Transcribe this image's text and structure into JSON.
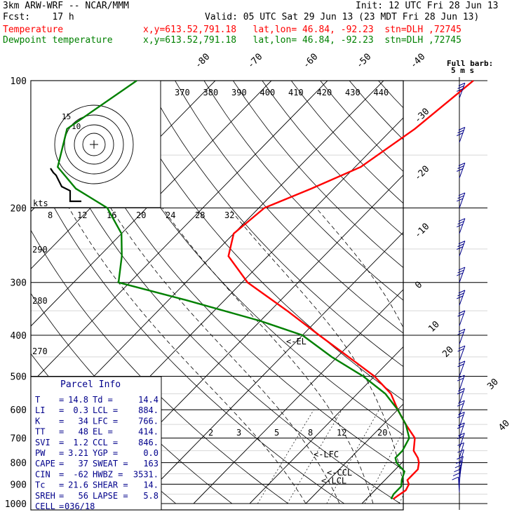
{
  "header": {
    "model": "3km ARW-WRF -- NCAR/MMM",
    "init": "Init: 12 UTC Fri 28 Jun 13",
    "fcst": "Fcst:    17 h",
    "valid": "Valid: 05 UTC Sat 29 Jun 13 (23 MDT Fri 28 Jun 13)",
    "legend": [
      {
        "label": "Temperature",
        "info": "x,y=613.52,791.18   lat,lon= 46.84, -92.23  stn=DLH ,72745",
        "color": "#ff0000"
      },
      {
        "label": "Dewpoint temperature",
        "info": "x,y=613.52,791.18   lat,lon= 46.84, -92.23  stn=DLH ,72745",
        "color": "#008000"
      }
    ]
  },
  "hodograph": {
    "units": "kts",
    "ring_labels": [
      "15",
      "10"
    ],
    "tick_labels": [
      "8",
      "12",
      "16",
      "20",
      "24",
      "28",
      "32"
    ]
  },
  "wind_key": {
    "title": "Full barb:",
    "value": "5 m s"
  },
  "parcel_info": {
    "title": "Parcel Info",
    "rows": [
      {
        "k1": "T",
        "v1": "14.8",
        "k2": "Td",
        "v2": "14.4"
      },
      {
        "k1": "LI",
        "v1": "0.3",
        "k2": "LCL",
        "v2": "884."
      },
      {
        "k1": "K",
        "v1": "34",
        "k2": "LFC",
        "v2": "766."
      },
      {
        "k1": "TT",
        "v1": "48",
        "k2": "EL",
        "v2": "414."
      },
      {
        "k1": "SVI",
        "v1": "1.2",
        "k2": "CCL",
        "v2": "846."
      },
      {
        "k1": "PW",
        "v1": "3.21",
        "k2": "YGP",
        "v2": "0.0"
      },
      {
        "k1": "CAPE",
        "v1": "37",
        "k2": "SWEAT",
        "v2": "163"
      },
      {
        "k1": "CIN",
        "v1": "-62",
        "k2": "HWBZ",
        "v2": "3531."
      },
      {
        "k1": "Tc",
        "v1": "21.6",
        "k2": "SHEAR",
        "v2": "14."
      },
      {
        "k1": "SREH",
        "v1": "56",
        "k2": "LAPSE",
        "v2": "5.8"
      },
      {
        "k1": "CELL",
        "v1": "036/18",
        "k2": "",
        "v2": ""
      }
    ]
  },
  "chart_data": {
    "type": "line",
    "title": "",
    "ylabel": "",
    "xlabel": "",
    "pressure_levels": [
      100,
      200,
      300,
      400,
      500,
      600,
      700,
      800,
      900,
      1000
    ],
    "isotherm_labels": [
      "-80",
      "-70",
      "-60",
      "-50",
      "-40",
      "-30",
      "-20",
      "-10",
      "0",
      "10",
      "20",
      "30",
      "40"
    ],
    "theta_labels": [
      "370",
      "380",
      "390",
      "400",
      "410",
      "420",
      "430",
      "440"
    ],
    "dry_adiabat_labels": [
      "290",
      "280",
      "270"
    ],
    "mixing_ratio_labels": [
      "2",
      "3",
      "5",
      "8",
      "12",
      "20"
    ],
    "level_markers": [
      {
        "label": "<-EL",
        "pressure": 414
      },
      {
        "label": "<-LFC",
        "pressure": 766
      },
      {
        "label": "<-CCL",
        "pressure": 846
      },
      {
        "label": "<-LCL",
        "pressure": 884
      }
    ],
    "series": [
      {
        "name": "Temperature",
        "color": "#ff0000",
        "points": [
          [
            100,
            -44
          ],
          [
            130,
            -46
          ],
          [
            160,
            -49
          ],
          [
            180,
            -54
          ],
          [
            200,
            -59
          ],
          [
            230,
            -60
          ],
          [
            260,
            -57
          ],
          [
            300,
            -49
          ],
          [
            350,
            -37
          ],
          [
            400,
            -27
          ],
          [
            450,
            -18
          ],
          [
            500,
            -10
          ],
          [
            550,
            -4
          ],
          [
            600,
            0
          ],
          [
            650,
            4
          ],
          [
            700,
            8
          ],
          [
            750,
            10
          ],
          [
            780,
            12
          ],
          [
            800,
            13
          ],
          [
            830,
            14
          ],
          [
            860,
            14
          ],
          [
            880,
            14
          ],
          [
            900,
            15
          ],
          [
            930,
            15.5
          ],
          [
            960,
            15
          ],
          [
            975,
            14.8
          ]
        ]
      },
      {
        "name": "Dewpoint temperature",
        "color": "#008000",
        "points": [
          [
            100,
            -104
          ],
          [
            130,
            -108
          ],
          [
            160,
            -103
          ],
          [
            180,
            -96
          ],
          [
            200,
            -87
          ],
          [
            230,
            -80
          ],
          [
            260,
            -76
          ],
          [
            300,
            -72
          ],
          [
            330,
            -57
          ],
          [
            370,
            -40
          ],
          [
            400,
            -30
          ],
          [
            450,
            -21
          ],
          [
            500,
            -12
          ],
          [
            550,
            -5
          ],
          [
            600,
            0
          ],
          [
            650,
            4
          ],
          [
            700,
            7
          ],
          [
            750,
            8
          ],
          [
            780,
            8
          ],
          [
            800,
            9
          ],
          [
            840,
            12
          ],
          [
            880,
            13
          ],
          [
            910,
            14
          ],
          [
            950,
            14
          ],
          [
            975,
            14.4
          ]
        ]
      }
    ],
    "wind_barbs": [
      {
        "pressure": 110,
        "speed_ms": 30,
        "dir": 250
      },
      {
        "pressure": 140,
        "speed_ms": 30,
        "dir": 250
      },
      {
        "pressure": 170,
        "speed_ms": 30,
        "dir": 250
      },
      {
        "pressure": 200,
        "speed_ms": 30,
        "dir": 250
      },
      {
        "pressure": 230,
        "speed_ms": 25,
        "dir": 250
      },
      {
        "pressure": 260,
        "speed_ms": 25,
        "dir": 250
      },
      {
        "pressure": 300,
        "speed_ms": 25,
        "dir": 250
      },
      {
        "pressure": 340,
        "speed_ms": 25,
        "dir": 250
      },
      {
        "pressure": 380,
        "speed_ms": 20,
        "dir": 250
      },
      {
        "pressure": 420,
        "speed_ms": 20,
        "dir": 250
      },
      {
        "pressure": 460,
        "speed_ms": 20,
        "dir": 250
      },
      {
        "pressure": 500,
        "speed_ms": 15,
        "dir": 250
      },
      {
        "pressure": 540,
        "speed_ms": 15,
        "dir": 240
      },
      {
        "pressure": 580,
        "speed_ms": 15,
        "dir": 240
      },
      {
        "pressure": 620,
        "speed_ms": 15,
        "dir": 240
      },
      {
        "pressure": 660,
        "speed_ms": 15,
        "dir": 240
      },
      {
        "pressure": 700,
        "speed_ms": 15,
        "dir": 240
      },
      {
        "pressure": 740,
        "speed_ms": 15,
        "dir": 240
      },
      {
        "pressure": 780,
        "speed_ms": 10,
        "dir": 230
      },
      {
        "pressure": 810,
        "speed_ms": 10,
        "dir": 230
      },
      {
        "pressure": 840,
        "speed_ms": 10,
        "dir": 220
      },
      {
        "pressure": 860,
        "speed_ms": 10,
        "dir": 210
      },
      {
        "pressure": 880,
        "speed_ms": 10,
        "dir": 200
      },
      {
        "pressure": 900,
        "speed_ms": 10,
        "dir": 190
      },
      {
        "pressure": 920,
        "speed_ms": 5,
        "dir": 180
      },
      {
        "pressure": 940,
        "speed_ms": 5,
        "dir": 170
      }
    ]
  }
}
